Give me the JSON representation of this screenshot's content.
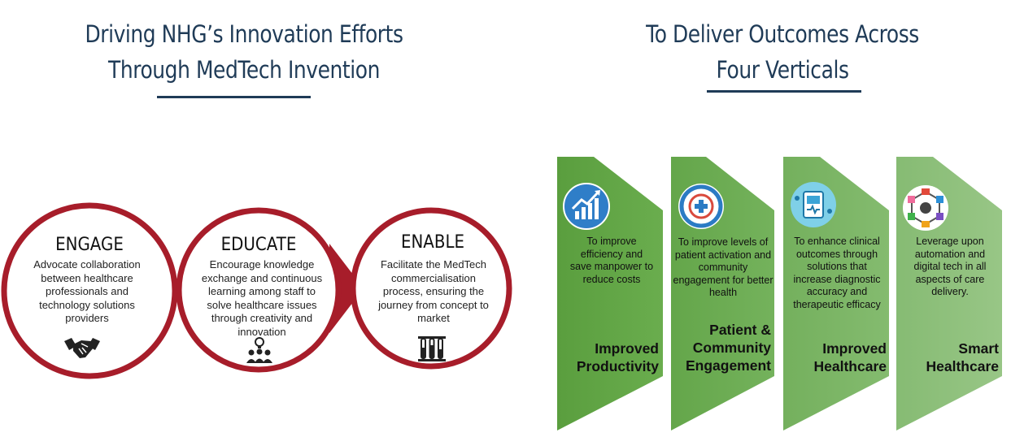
{
  "left_heading": {
    "line1": "Driving NHG’s Innovation Efforts",
    "line2": "Through MedTech Invention"
  },
  "right_heading": {
    "line1": "To Deliver Outcomes Across",
    "line2": "Four Verticals"
  },
  "colors": {
    "heading": "#1f3b57",
    "circle_border": "#a71d2a",
    "arrow": "#a71d2a",
    "banner_dark": "#5da141",
    "banner_light": "#8fc07b"
  },
  "pillars": [
    {
      "title": "ENGAGE",
      "description": "Advocate collaboration between healthcare professionals and technology solutions providers",
      "icon": "handshake-icon"
    },
    {
      "title": "EDUCATE",
      "description": "Encourage knowledge exchange and continuous learning among staff to solve healthcare issues through creativity and innovation",
      "icon": "team-idea-icon"
    },
    {
      "title": "ENABLE",
      "description": "Facilitate the MedTech commercialisation process, ensuring the journey from concept to market",
      "icon": "test-tubes-icon"
    }
  ],
  "verticals": [
    {
      "description": "To improve efficiency and save manpower to reduce costs",
      "title": "Improved Productivity",
      "icon": "growth-chart-icon"
    },
    {
      "description": "To improve levels of patient activation and community engagement for better health",
      "title": "Patient & Community Engagement",
      "icon": "health-badge-icon"
    },
    {
      "description": "To enhance clinical outcomes through solutions that increase diagnostic accuracy and therapeutic efficacy",
      "title": "Improved Healthcare",
      "icon": "medical-tech-icon"
    },
    {
      "description": "Leverage upon automation and digital tech in all aspects of care delivery.",
      "title": "Smart Healthcare",
      "icon": "smart-hexagon-icon"
    }
  ]
}
